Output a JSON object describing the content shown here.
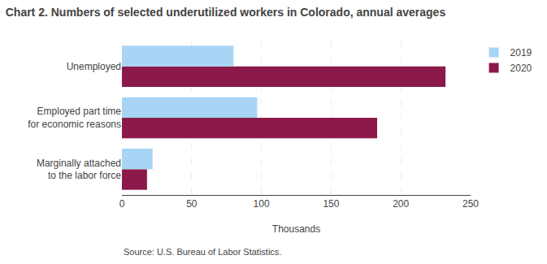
{
  "chart_data": {
    "type": "bar",
    "orientation": "horizontal",
    "title": "Chart 2. Numbers of selected underutilized workers in Colorado, annual averages",
    "categories": [
      "Marginally attached\nto the labor force",
      "Employed part time\nfor economic reasons",
      "Unemployed"
    ],
    "series": [
      {
        "name": "2019",
        "color": "#a8d4f5",
        "values": [
          22,
          97,
          80
        ]
      },
      {
        "name": "2020",
        "color": "#8b1a4a",
        "values": [
          18,
          183,
          232
        ]
      }
    ],
    "xlabel": "Thousands",
    "xlim": [
      0,
      250
    ],
    "xticks": [
      0,
      50,
      100,
      150,
      200,
      250
    ],
    "grid": true,
    "legend": "right",
    "annotations": [
      "Source: U.S. Bureau of Labor Statistics."
    ]
  }
}
